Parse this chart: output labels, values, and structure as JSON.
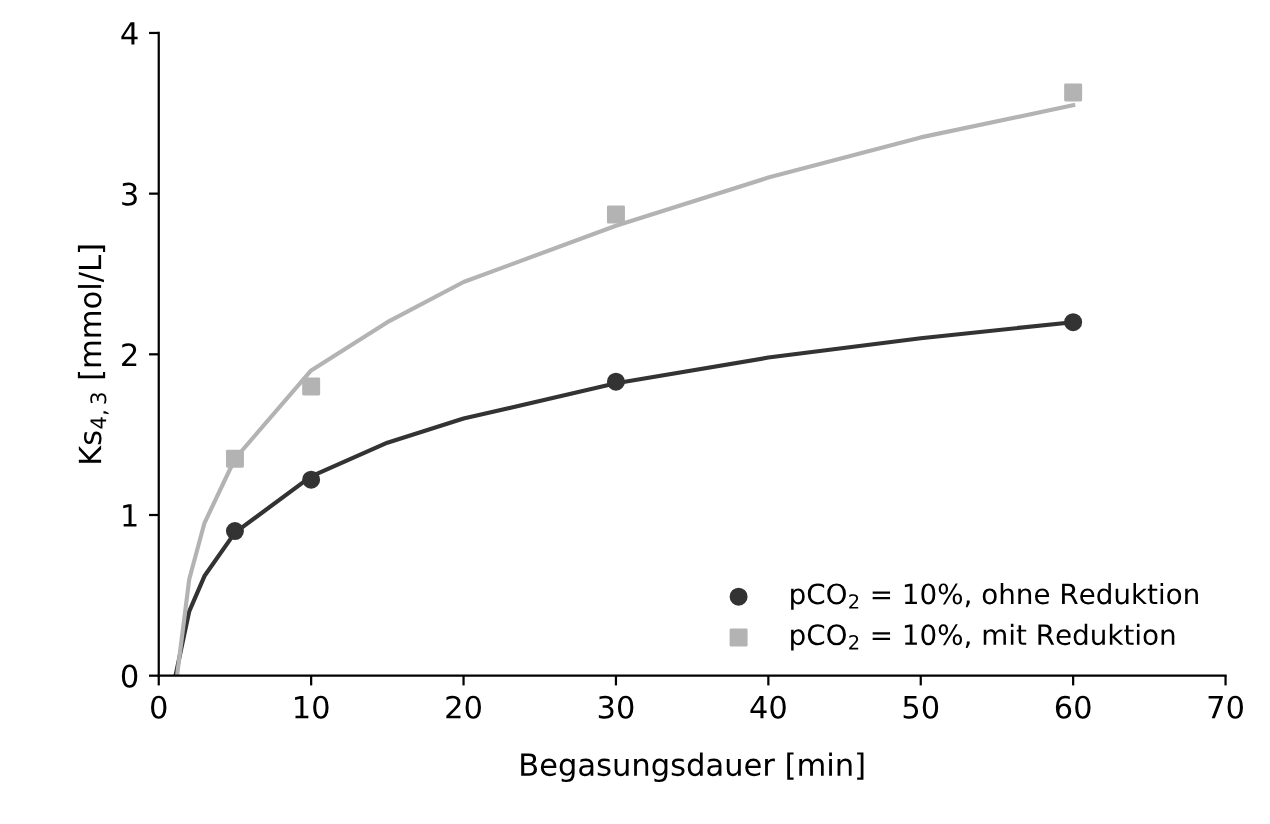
{
  "chart_data": {
    "type": "scatter",
    "xlabel": "Begasungsdauer [min]",
    "ylabel": "Ks$_{4,3}$ [mmol/L]",
    "xlim": [
      0,
      70
    ],
    "ylim": [
      0,
      4
    ],
    "xticks": [
      0,
      10,
      20,
      30,
      40,
      50,
      60,
      70
    ],
    "yticks": [
      0,
      1,
      2,
      3,
      4
    ],
    "grid": false,
    "legend": "bottom right",
    "series": [
      {
        "name": "pCO$_{2}$ = 10%, ohne Reduktion",
        "marker": "circle",
        "color": "#333333",
        "x": [
          5,
          10,
          30,
          60
        ],
        "values": [
          0.9,
          1.22,
          1.83,
          2.2
        ]
      },
      {
        "name": "pCO$_{2}$ = 10%, mit Reduktion",
        "marker": "square",
        "color": "#b3b3b3",
        "x": [
          5,
          10,
          30,
          60
        ],
        "values": [
          1.35,
          1.8,
          2.87,
          3.63
        ]
      },
      {
        "type": "line",
        "marker": "none",
        "color": "#333333",
        "x": [
          1.1,
          2,
          3,
          5,
          10,
          15,
          20,
          30,
          40,
          50,
          60
        ],
        "values": [
          0,
          0.4,
          0.62,
          0.89,
          1.24,
          1.45,
          1.6,
          1.82,
          1.98,
          2.1,
          2.2
        ]
      },
      {
        "type": "line",
        "marker": "none",
        "color": "#b3b3b3",
        "x": [
          1.2,
          2,
          3,
          5,
          10,
          15,
          20,
          30,
          40,
          50,
          60
        ],
        "values": [
          0,
          0.6,
          0.95,
          1.35,
          1.9,
          2.2,
          2.45,
          2.8,
          3.1,
          3.35,
          3.55
        ]
      }
    ]
  }
}
